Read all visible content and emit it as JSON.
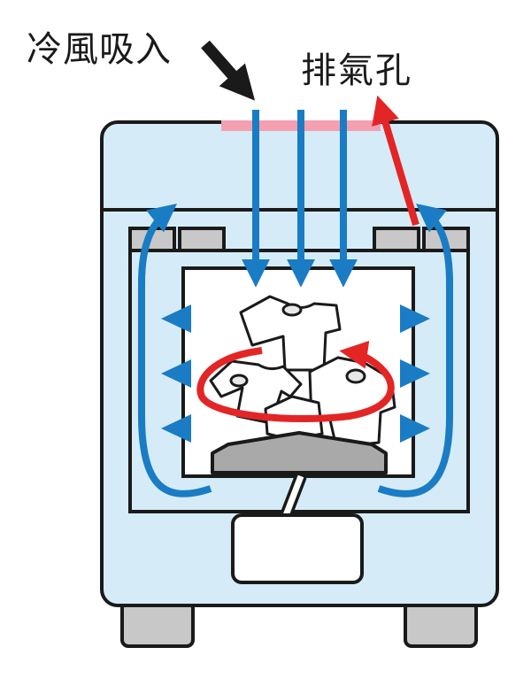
{
  "labels": {
    "cold_air_intake": "冷風吸入",
    "exhaust_vent": "排氣孔"
  },
  "colors": {
    "body_fill": "#d5ecf8",
    "body_stroke": "#1a1a1a",
    "air_flow_blue": "#1a7cc4",
    "exhaust_red": "#e32526",
    "intake_strip_pink": "#f4a0b0",
    "panel_gray": "#c8c8c8",
    "deflector_gray": "#a9a9a9",
    "black": "#1a1a1a"
  },
  "icons": {
    "intake_pointer": "arrow-down-right-icon",
    "garments": "tshirt-icon"
  }
}
